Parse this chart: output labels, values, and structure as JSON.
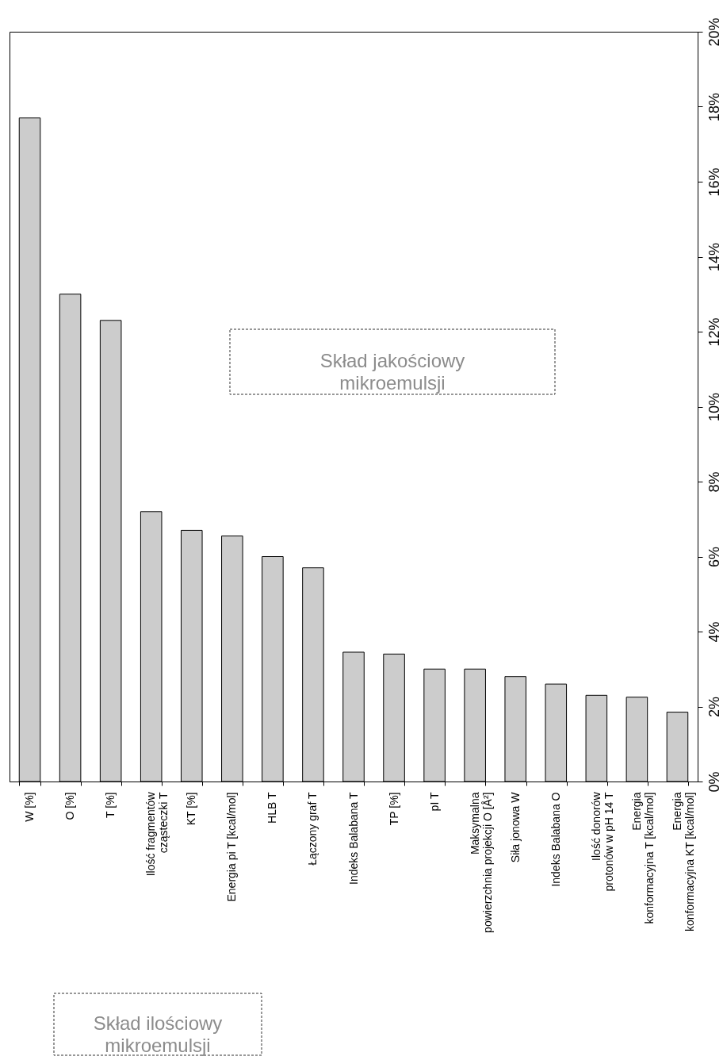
{
  "chart_data": {
    "type": "bar",
    "categories": [
      "W [%]",
      "O [%]",
      "T [%]",
      "Ilość fragmentów\ncząsteczki T",
      "KT [%]",
      "Energia pi T [kcal/mol]",
      "HLB T",
      "Łączony graf T",
      "Indeks Balabana T",
      "TP [%]",
      "pI T",
      "Maksymalna\npowierzchnia projekcji O [Å²]",
      "Siła jonowa W",
      "Indeks Balabana O",
      "Ilość donorów\nprotonów w pH 14 T",
      "Energia\nkonformacyjna T [kcal/mol]",
      "Energia\nkonformacyjna KT [kcal/mol]"
    ],
    "values": [
      17.7,
      13.0,
      12.3,
      7.2,
      6.7,
      6.55,
      6.0,
      5.7,
      3.45,
      3.4,
      3.0,
      3.0,
      2.8,
      2.6,
      2.3,
      2.25,
      1.85
    ],
    "color": "#cccccc",
    "ylim": [
      0,
      20
    ],
    "yticks": [
      {
        "value": 0,
        "label": "0%"
      },
      {
        "value": 2,
        "label": "2%"
      },
      {
        "value": 4,
        "label": "4%"
      },
      {
        "value": 6,
        "label": "6%"
      },
      {
        "value": 8,
        "label": "8%"
      },
      {
        "value": 10,
        "label": "10%"
      },
      {
        "value": 12,
        "label": "12%"
      },
      {
        "value": 14,
        "label": "14%"
      },
      {
        "value": 16,
        "label": "16%"
      },
      {
        "value": 18,
        "label": "18%"
      },
      {
        "value": 20,
        "label": "20%"
      }
    ],
    "grid": false,
    "annotations": [
      "Skład jakościowy\nmikroemulsji",
      "Skład ilościowy\nmikroemulsji"
    ]
  }
}
